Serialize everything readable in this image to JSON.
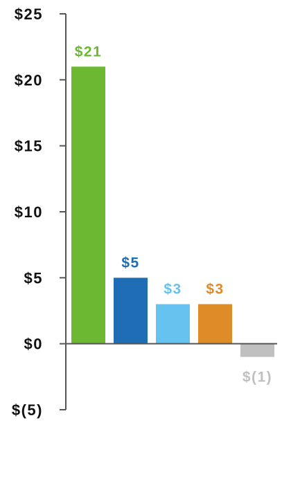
{
  "chart_data": {
    "type": "bar",
    "categories": [
      "",
      "",
      "",
      "",
      ""
    ],
    "values": [
      21,
      5,
      3,
      3,
      -1
    ],
    "data_labels": [
      "$21",
      "$5",
      "$3",
      "$3",
      "$(1)"
    ],
    "colors": [
      "#6cb832",
      "#1e6db5",
      "#66c3ef",
      "#dd8c27",
      "#c0c0c0"
    ],
    "title": "",
    "xlabel": "",
    "ylabel": "",
    "ylim": [
      -5,
      25
    ],
    "yticks": [
      25,
      20,
      15,
      10,
      5,
      0,
      -5
    ],
    "ytick_labels": [
      "$25",
      "$20",
      "$15",
      "$10",
      "$5",
      "$0",
      "$(5)"
    ],
    "grid": false,
    "legend": "none",
    "axis_color": "#555555",
    "tick_text_color": "#111111"
  }
}
